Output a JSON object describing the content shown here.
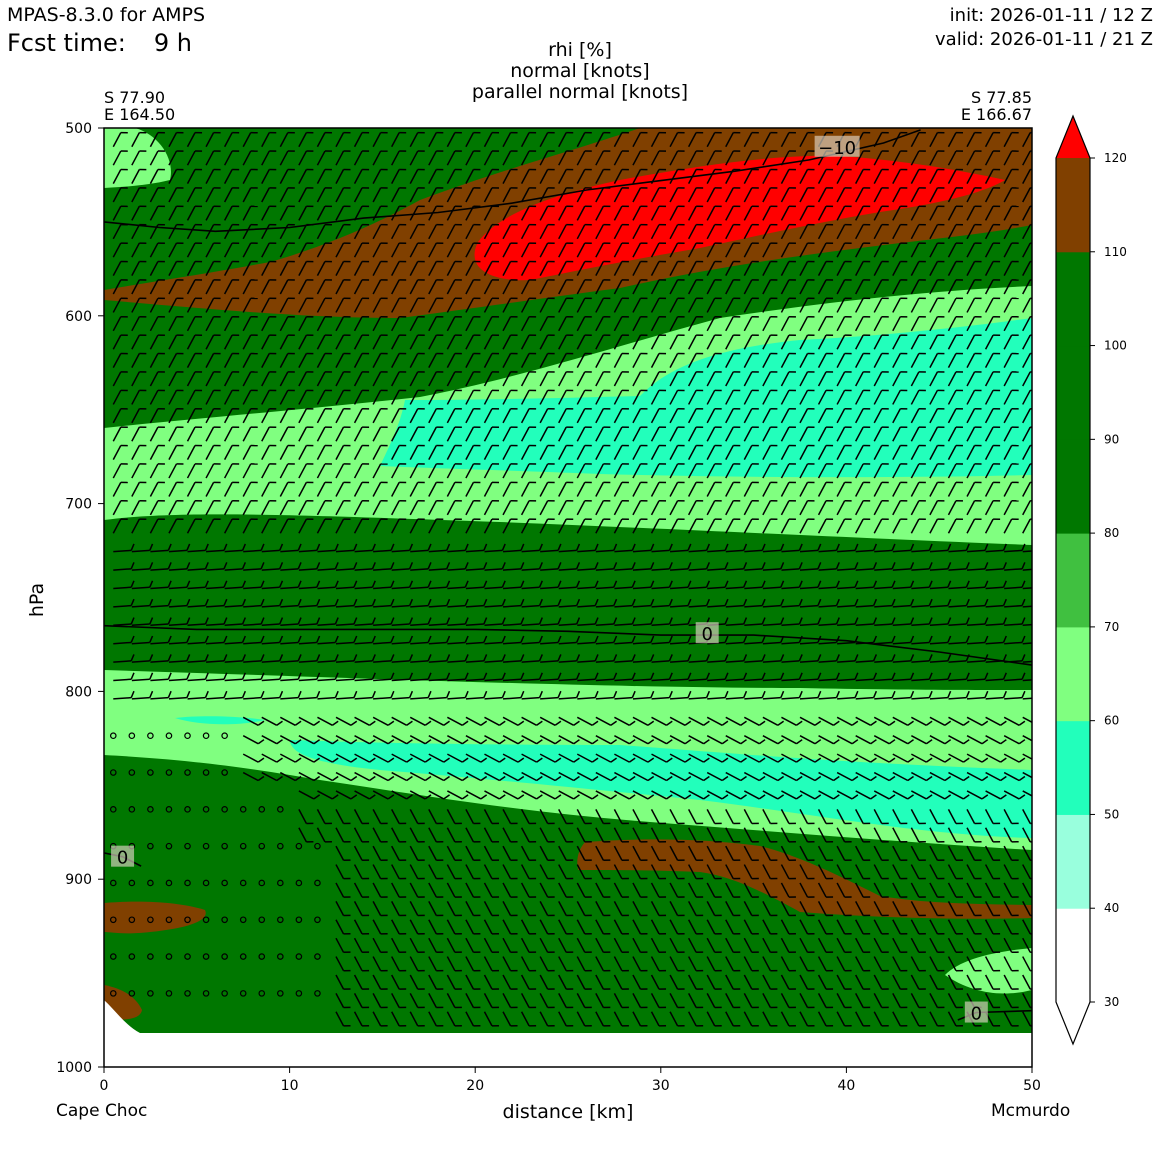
{
  "header": {
    "model": "MPAS-8.3.0 for AMPS",
    "fcst_label": "Fcst time:",
    "fcst_value": "9 h",
    "init": "init: 2026-01-11 / 12 Z",
    "valid": "valid: 2026-01-11 / 21 Z"
  },
  "titles": [
    "rhi [%]",
    "normal [knots]",
    "parallel normal [knots]"
  ],
  "start_point": {
    "lat": "S 77.90",
    "lon": "E 164.50",
    "name": "Cape Choc"
  },
  "end_point": {
    "lat": "S 77.85",
    "lon": "E 166.67",
    "name": "Mcmurdo"
  },
  "chart_data": {
    "type": "heatmap",
    "xlabel": "distance [km]",
    "ylabel": "hPa",
    "xlim": [
      0,
      50
    ],
    "ylim": [
      1000,
      500
    ],
    "xticks": [
      0,
      10,
      20,
      30,
      40,
      50
    ],
    "yticks": [
      500,
      600,
      700,
      800,
      900,
      1000
    ],
    "colorbar": {
      "levels": [
        30,
        40,
        50,
        60,
        70,
        80,
        90,
        100,
        110,
        120
      ],
      "colors": [
        "#ffffff",
        "#99ffdd",
        "#22ffbb",
        "#80ff80",
        "#40c040",
        "#007700",
        "#007700",
        "#007700",
        "#804000",
        "#ff0000"
      ],
      "extend": "both"
    },
    "temperature_contours": [
      {
        "label": "-10",
        "points": [
          [
            0,
            550
          ],
          [
            3,
            553
          ],
          [
            6,
            555
          ],
          [
            10,
            553
          ],
          [
            14,
            548
          ],
          [
            18,
            545
          ],
          [
            22,
            540
          ],
          [
            26,
            533
          ],
          [
            30,
            528
          ],
          [
            34,
            523
          ],
          [
            38,
            517
          ],
          [
            42,
            508
          ],
          [
            44,
            501
          ]
        ]
      },
      {
        "label": "0",
        "points": [
          [
            0,
            765
          ],
          [
            5,
            767
          ],
          [
            10,
            767
          ],
          [
            15,
            767
          ],
          [
            20,
            767
          ],
          [
            25,
            768
          ],
          [
            30,
            770
          ],
          [
            35,
            770
          ],
          [
            40,
            773
          ],
          [
            45,
            779
          ],
          [
            50,
            786
          ]
        ]
      },
      {
        "label": "0",
        "points": [
          [
            0,
            886
          ],
          [
            1,
            888
          ],
          [
            2,
            893
          ]
        ]
      },
      {
        "label": "0",
        "points": [
          [
            46,
            975
          ],
          [
            47,
            971
          ],
          [
            50,
            970
          ]
        ]
      }
    ],
    "terrain_top_hpa": [
      [
        0,
        965
      ],
      [
        1,
        972
      ],
      [
        2,
        980
      ],
      [
        50,
        983
      ]
    ],
    "wind_barbs": "barbs at every 1 km and ~10 hPa throughout; calm (circle) markers at 0-12 km between 810 and 970 hPa"
  }
}
